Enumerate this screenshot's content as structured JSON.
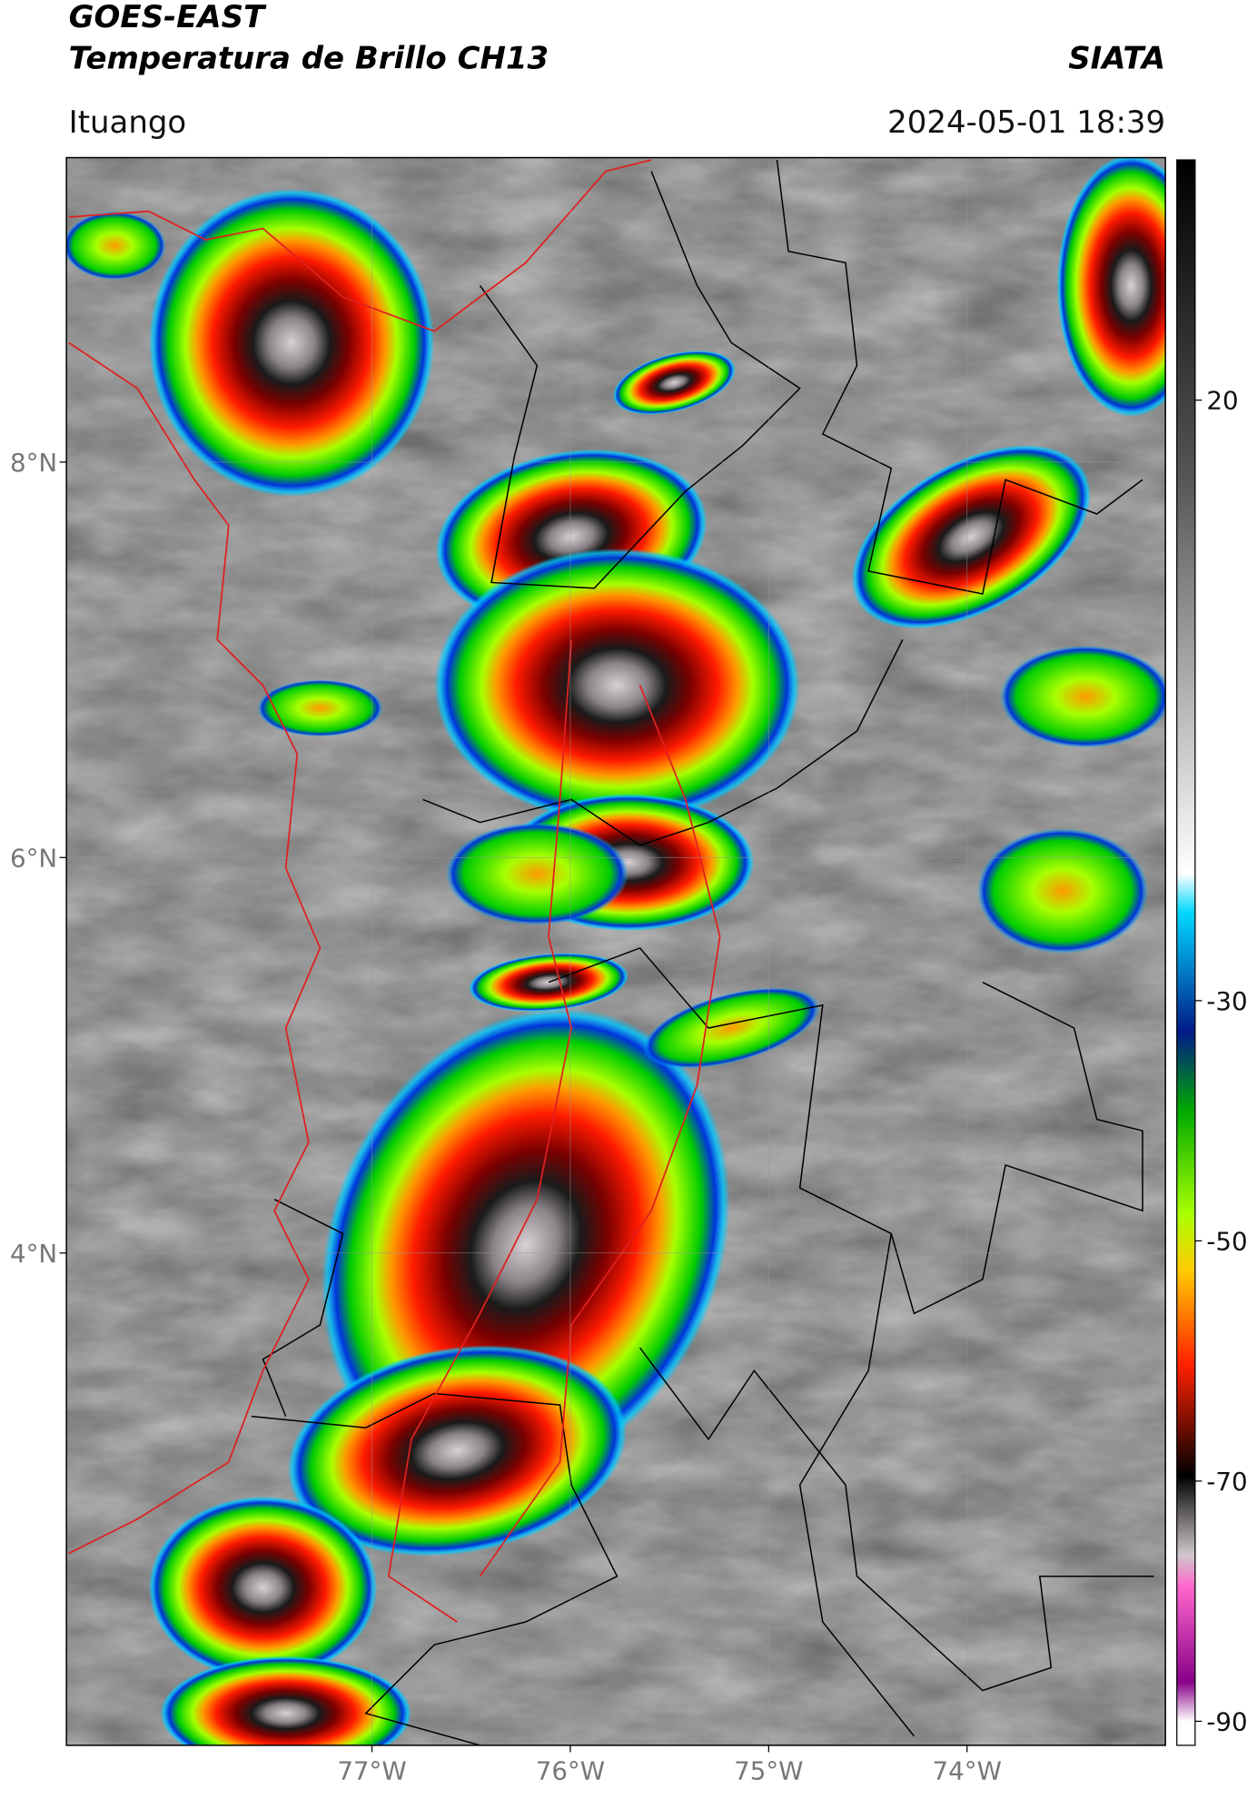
{
  "header": {
    "title": "GOES-EAST",
    "subtitle": "Temperatura de Brillo CH13",
    "source": "SIATA",
    "location": "Ituango",
    "timestamp": "2024-05-01 18:39"
  },
  "map": {
    "lonlim": [
      -78.54,
      -73.0
    ],
    "latlim": [
      1.51,
      9.54
    ],
    "lon_ticks": [
      {
        "value": -77,
        "label": "77°W"
      },
      {
        "value": -76,
        "label": "76°W"
      },
      {
        "value": -75,
        "label": "75°W"
      },
      {
        "value": -74,
        "label": "74°W"
      }
    ],
    "lat_ticks": [
      {
        "value": 8,
        "label": "8°N"
      },
      {
        "value": 6,
        "label": "6°N"
      },
      {
        "value": 4,
        "label": "4°N"
      }
    ]
  },
  "colorbar": {
    "lim": [
      -92,
      40
    ],
    "ticks": [
      20,
      -30,
      -50,
      -70,
      -90
    ]
  }
}
